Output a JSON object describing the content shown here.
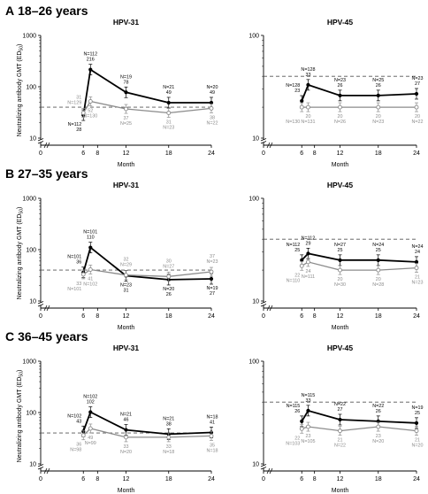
{
  "figure": {
    "panels": [
      {
        "letter": "A",
        "title": "18–26 years"
      },
      {
        "letter": "B",
        "title": "27–35 years"
      },
      {
        "letter": "C",
        "title": "36–45 years"
      }
    ],
    "ylabel": "Neutralizing antibody GMT (ED₅₀)",
    "xlabel": "Month",
    "colors": {
      "vaccine": "#000000",
      "placebo": "#8c8c8c",
      "reference": "#555555"
    }
  },
  "chart_data": [
    {
      "type": "line",
      "panel": "A",
      "group": "18–26 years",
      "title": "HPV-31",
      "xlabel": "Month",
      "ylabel": "Neutralizing antibody GMT (ED₅₀)",
      "x_ticks": [
        0,
        6,
        8,
        12,
        18,
        24
      ],
      "y_scale": "log",
      "ylim": [
        10,
        1000
      ],
      "y_ticks": [
        10,
        100,
        1000
      ],
      "reference_line": 40,
      "series": [
        {
          "color": "#000000",
          "x": [
            6,
            7,
            12,
            18,
            24
          ],
          "y": [
            28,
            216,
            78,
            49,
            49
          ],
          "n_labels": [
            "N=112",
            "N=112",
            "N=19",
            "N=21",
            "N=20"
          ],
          "value_labels": [
            "28",
            "216",
            "78",
            "49",
            "49"
          ]
        },
        {
          "color": "#8c8c8c",
          "x": [
            6,
            7,
            12,
            18,
            24
          ],
          "y": [
            31,
            52,
            37,
            31,
            38
          ],
          "n_labels": [
            "N=129",
            "N=130",
            "N=25",
            "N=23",
            "N=22"
          ],
          "value_labels": [
            "31",
            "52",
            "37",
            "31",
            "38"
          ]
        }
      ]
    },
    {
      "type": "line",
      "panel": "A",
      "group": "18–26 years",
      "title": "HPV-45",
      "xlabel": "Month",
      "ylabel": "",
      "x_ticks": [
        0,
        6,
        8,
        12,
        18,
        24
      ],
      "y_scale": "log",
      "ylim": [
        10,
        100
      ],
      "y_ticks": [
        10,
        100
      ],
      "reference_line": 40,
      "series": [
        {
          "color": "#000000",
          "x": [
            6,
            7,
            12,
            18,
            24
          ],
          "y": [
            23,
            33,
            26,
            26,
            27
          ],
          "n_labels": [
            "N=128",
            "N=128",
            "N=23",
            "N=25",
            "N=23"
          ],
          "value_labels": [
            "23",
            "33",
            "26",
            "26",
            "27"
          ]
        },
        {
          "color": "#8c8c8c",
          "x": [
            6,
            7,
            12,
            18,
            24
          ],
          "y": [
            20,
            20,
            20,
            20,
            20
          ],
          "n_labels": [
            "N=130",
            "N=131",
            "N=26",
            "N=23",
            "N=22"
          ],
          "value_labels": [
            "",
            "20",
            "20",
            "20",
            "20"
          ]
        }
      ]
    },
    {
      "type": "line",
      "panel": "B",
      "group": "27–35 years",
      "title": "HPV-31",
      "xlabel": "Month",
      "ylabel": "Neutralizing antibody GMT (ED₅₀)",
      "x_ticks": [
        0,
        6,
        8,
        12,
        18,
        24
      ],
      "y_scale": "log",
      "ylim": [
        10,
        1000
      ],
      "y_ticks": [
        10,
        100,
        1000
      ],
      "reference_line": 40,
      "series": [
        {
          "color": "#000000",
          "x": [
            6,
            7,
            12,
            18,
            24
          ],
          "y": [
            36,
            110,
            31,
            26,
            27
          ],
          "n_labels": [
            "N=101",
            "N=101",
            "N=23",
            "N=20",
            "N=19"
          ],
          "value_labels": [
            "36",
            "110",
            "31",
            "26",
            "27"
          ]
        },
        {
          "color": "#8c8c8c",
          "x": [
            6,
            7,
            12,
            18,
            24
          ],
          "y": [
            33,
            41,
            32,
            30,
            37
          ],
          "n_labels": [
            "N=101",
            "N=102",
            "N=29",
            "N=27",
            "N=23"
          ],
          "value_labels": [
            "33",
            "41",
            "32",
            "30",
            "37"
          ]
        }
      ]
    },
    {
      "type": "line",
      "panel": "B",
      "group": "27–35 years",
      "title": "HPV-45",
      "xlabel": "Month",
      "ylabel": "",
      "x_ticks": [
        0,
        6,
        8,
        12,
        18,
        24
      ],
      "y_scale": "log",
      "ylim": [
        10,
        100
      ],
      "y_ticks": [
        10,
        100
      ],
      "reference_line": 40,
      "series": [
        {
          "color": "#000000",
          "x": [
            6,
            7,
            12,
            18,
            24
          ],
          "y": [
            25,
            29,
            25,
            25,
            24
          ],
          "n_labels": [
            "N=112",
            "N=112",
            "N=27",
            "N=24",
            "N=24"
          ],
          "value_labels": [
            "25",
            "29",
            "25",
            "25",
            "24"
          ]
        },
        {
          "color": "#8c8c8c",
          "x": [
            6,
            7,
            12,
            18,
            24
          ],
          "y": [
            22,
            24,
            20,
            20,
            21
          ],
          "n_labels": [
            "N=110",
            "N=111",
            "N=30",
            "N=28",
            "N=23"
          ],
          "value_labels": [
            "22",
            "24",
            "20",
            "20",
            "21"
          ]
        }
      ]
    },
    {
      "type": "line",
      "panel": "C",
      "group": "36–45 years",
      "title": "HPV-31",
      "xlabel": "Month",
      "ylabel": "Neutralizing antibody GMT (ED₅₀)",
      "x_ticks": [
        0,
        6,
        8,
        12,
        18,
        24
      ],
      "y_scale": "log",
      "ylim": [
        10,
        1000
      ],
      "y_ticks": [
        10,
        100,
        1000
      ],
      "reference_line": 40,
      "series": [
        {
          "color": "#000000",
          "x": [
            6,
            7,
            12,
            18,
            24
          ],
          "y": [
            43,
            102,
            46,
            38,
            41
          ],
          "n_labels": [
            "N=102",
            "N=102",
            "N=21",
            "N=21",
            "N=18"
          ],
          "value_labels": [
            "43",
            "102",
            "46",
            "38",
            "41"
          ]
        },
        {
          "color": "#8c8c8c",
          "x": [
            6,
            7,
            12,
            18,
            24
          ],
          "y": [
            36,
            49,
            33,
            33,
            35
          ],
          "n_labels": [
            "N=98",
            "N=99",
            "N=20",
            "N=18",
            "N=18"
          ],
          "value_labels": [
            "36",
            "49",
            "33",
            "33",
            "35"
          ]
        }
      ]
    },
    {
      "type": "line",
      "panel": "C",
      "group": "36–45 years",
      "title": "HPV-45",
      "xlabel": "Month",
      "ylabel": "",
      "x_ticks": [
        0,
        6,
        8,
        12,
        18,
        24
      ],
      "y_scale": "log",
      "ylim": [
        10,
        100
      ],
      "y_ticks": [
        10,
        100
      ],
      "reference_line": 40,
      "series": [
        {
          "color": "#000000",
          "x": [
            6,
            7,
            12,
            18,
            24
          ],
          "y": [
            26,
            33,
            27,
            26,
            25
          ],
          "n_labels": [
            "N=115",
            "N=115",
            "N=22",
            "N=22",
            "N=19"
          ],
          "value_labels": [
            "26",
            "33",
            "27",
            "26",
            "25"
          ]
        },
        {
          "color": "#8c8c8c",
          "x": [
            6,
            7,
            12,
            18,
            24
          ],
          "y": [
            22,
            23,
            21,
            23,
            21
          ],
          "n_labels": [
            "N=103",
            "N=105",
            "N=22",
            "N=20",
            "N=20"
          ],
          "value_labels": [
            "22",
            "23",
            "21",
            "23",
            "21"
          ]
        }
      ]
    }
  ]
}
